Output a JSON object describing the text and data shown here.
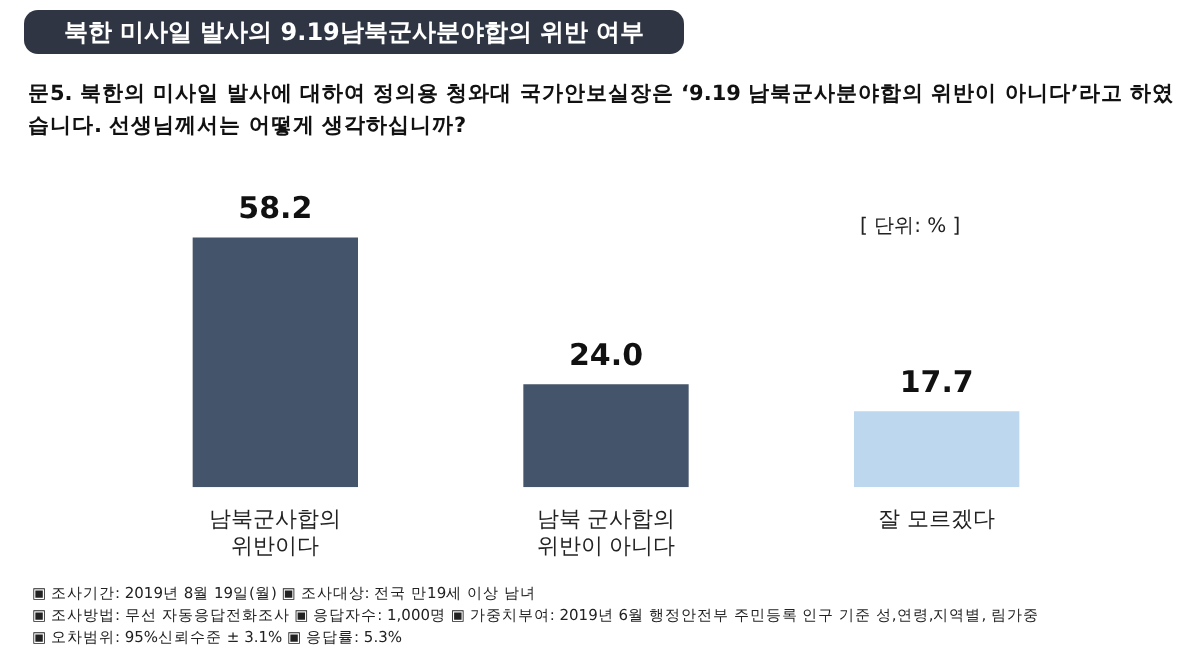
{
  "chart_data": {
    "type": "bar",
    "title": "북한 미사일 발사의 9.19남북군사분야합의 위반 여부",
    "subtitle": "문5. 북한의 미사일 발사에 대하여 정의용 청와대 국가안보실장은 ‘9.19 남북군사분야합의 위반이 아니다’라고 하였습니다. 선생님께서는 어떻게 생각하십니까?",
    "categories": [
      "남북군사합의\n위반이다",
      "남북 군사합의\n위반이 아니다",
      "잘 모르겠다"
    ],
    "values": [
      58.2,
      24.0,
      17.7
    ],
    "colors": [
      "#44546a",
      "#44546a",
      "#bdd7ee"
    ],
    "value_labels": [
      "58.2",
      "24.0",
      "17.7"
    ],
    "grid": false,
    "legend": false,
    "annotations": [
      "[ 단위: % ]",
      "▣ 조사기간: 2019년 8월 19일(월) ▣ 조사대상: 전국 만19세 이상 남녀",
      "▣ 조사방법: 무선 자동응답전화조사 ▣ 응답자수: 1,000명 ▣ 가중치부여: 2019년 6월 행정안전부 주민등록 인구 기준 성,연령,지역별, 림가중",
      "▣ 오차범위: 95%신뢰수준 ± 3.1% ▣ 응답률: 5.3%"
    ]
  }
}
